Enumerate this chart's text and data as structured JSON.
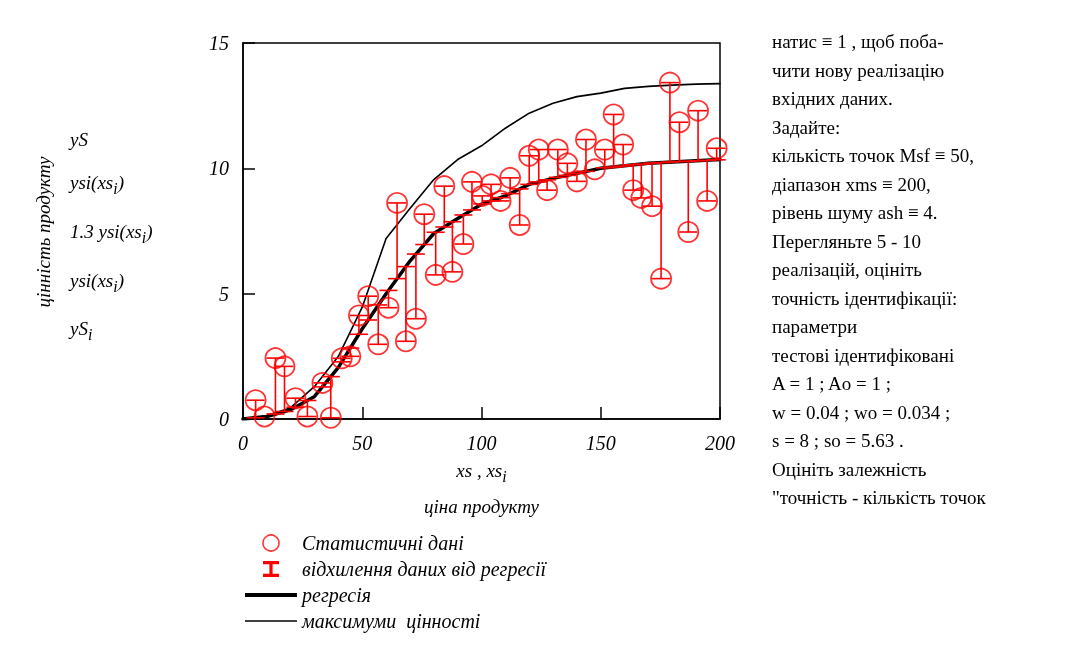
{
  "chart_data": {
    "type": "scatter",
    "xlabel": "xs , xs$_{i}$\nціна продукту",
    "xlim": [
      0,
      200
    ],
    "xticks": [
      0,
      50,
      100,
      150,
      200
    ],
    "ylim": [
      0,
      15
    ],
    "yticks": [
      0,
      5,
      10,
      15
    ],
    "grid": false,
    "legend": "bottom",
    "series": [
      {
        "name": "Статистичні дані",
        "type": "scatter",
        "marker": "circle",
        "color": "#ff0000",
        "x": [
          5.3,
          9,
          13.6,
          17.4,
          22,
          27,
          33.3,
          36.8,
          41.4,
          45,
          48.6,
          52.5,
          56.7,
          61,
          64.6,
          68.3,
          72.5,
          76,
          80.8,
          84.4,
          87.8,
          92.4,
          96,
          100.3,
          104,
          108,
          112,
          116,
          120,
          124,
          127.5,
          132,
          136,
          140,
          143.8,
          147.5,
          151.7,
          155.4,
          159.4,
          163.6,
          167,
          171.5,
          175.3,
          179,
          183,
          186.7,
          190.8,
          194.6,
          198.6
        ],
        "values": [
          0.75,
          0.1,
          2.43,
          2.1,
          0.83,
          0.1,
          1.44,
          0.05,
          2.42,
          2.5,
          4.13,
          4.9,
          2.98,
          4.44,
          8.62,
          3.1,
          4.0,
          8.17,
          5.75,
          9.29,
          5.87,
          6.98,
          9.46,
          8.9,
          9.36,
          8.7,
          9.62,
          7.74,
          10.5,
          10.75,
          9.13,
          10.75,
          10.2,
          9.48,
          11.15,
          9.96,
          10.75,
          12.15,
          10.95,
          9.13,
          8.82,
          8.49,
          5.6,
          13.42,
          11.84,
          7.46,
          12.3,
          8.7,
          10.8
        ],
        "errors": [
          [
            0.05,
            0.75
          ],
          null,
          [
            0.2,
            2.43
          ],
          [
            0.3,
            2.1
          ],
          [
            0.47,
            0.83
          ],
          [
            0.1,
            0.74
          ],
          [
            1.28,
            1.44
          ],
          [
            0.05,
            1.69
          ],
          [
            2.28,
            2.42
          ],
          [
            2.5,
            2.83
          ],
          [
            3.38,
            4.13
          ],
          [
            3.95,
            4.9
          ],
          [
            2.98,
            4.55
          ],
          [
            4.44,
            5.13
          ],
          [
            5.6,
            8.62
          ],
          [
            3.1,
            6.08
          ],
          [
            4.0,
            6.58
          ],
          [
            6.96,
            8.17
          ],
          [
            5.75,
            7.45
          ],
          [
            7.66,
            9.29
          ],
          [
            5.87,
            7.87
          ],
          [
            6.98,
            8.14
          ],
          [
            8.34,
            9.46
          ],
          [
            8.58,
            8.9
          ],
          [
            8.7,
            9.36
          ],
          [
            8.7,
            8.83
          ],
          [
            8.99,
            9.62
          ],
          [
            7.74,
            9.18
          ],
          [
            9.36,
            10.5
          ],
          [
            9.46,
            10.75
          ],
          [
            9.13,
            9.54
          ],
          [
            9.64,
            10.75
          ],
          [
            9.72,
            10.2
          ],
          [
            9.48,
            9.8
          ],
          [
            9.88,
            11.15
          ],
          null,
          [
            10.02,
            10.75
          ],
          [
            10.05,
            12.15
          ],
          [
            10.09,
            10.95
          ],
          [
            9.13,
            10.14
          ],
          [
            8.82,
            10.17
          ],
          [
            8.49,
            10.21
          ],
          [
            5.6,
            10.23
          ],
          [
            10.25,
            13.42
          ],
          [
            10.27,
            11.84
          ],
          [
            7.46,
            10.28
          ],
          [
            10.3,
            12.3
          ],
          [
            8.7,
            10.32
          ],
          [
            10.34,
            10.8
          ]
        ]
      },
      {
        "name": "регресія",
        "type": "line",
        "marker": "none",
        "line_style": "solid",
        "color": "#000000",
        "x": [
          0,
          10,
          20,
          30,
          40,
          50,
          60,
          70,
          80,
          90,
          100,
          110,
          120,
          130,
          140,
          150,
          160,
          170,
          180,
          190,
          200
        ],
        "values": [
          0,
          0.1,
          0.37,
          0.9,
          2.06,
          3.6,
          5.0,
          6.3,
          7.4,
          8.0,
          8.57,
          8.9,
          9.36,
          9.6,
          9.8,
          10.0,
          10.1,
          10.2,
          10.25,
          10.3,
          10.35
        ]
      },
      {
        "name": "максимуми  цінності",
        "type": "line",
        "marker": "none",
        "line_style": "solid",
        "color": "#000000",
        "x": [
          0,
          10,
          20,
          30,
          40,
          50,
          60,
          70,
          80,
          90,
          100,
          110,
          120,
          130,
          140,
          150,
          160,
          170,
          180,
          190,
          200
        ],
        "values": [
          0,
          0.13,
          0.45,
          1.3,
          2.5,
          4.46,
          7.2,
          8.4,
          9.55,
          10.35,
          10.9,
          11.6,
          12.2,
          12.6,
          12.86,
          13.0,
          13.19,
          13.27,
          13.32,
          13.36,
          13.38
        ]
      }
    ],
    "annotations": [
      "цінність продукту",
      "yS",
      "ysi(xs$_{i}$)",
      "1.3 ysi(xs$_{i}$)",
      "ysi(xs$_{i}$)",
      "yS$_{i}$",
      "відхилення даних від регресії",
      "натис ≡ 1 , щоб поба-",
      "чити нову реалізацію",
      "вхідних даних.",
      "Задайте:",
      "кількість точок Msf ≡ 50,",
      "діапазон xms ≡ 200,",
      "рівень шуму ash ≡ 4.",
      "Перегляньте 5 - 10",
      "реалізацій, оцініть",
      "точність ідентифікації:",
      "параметри",
      "тестові ідентифіковані",
      "A = 1 ; Ao = 1 ;",
      "w = 0.04 ; wo = 0.034 ;",
      "s = 8 ; so = 5.63 .",
      "Оцініть залежність",
      "\"точність - кількість точок"
    ]
  }
}
